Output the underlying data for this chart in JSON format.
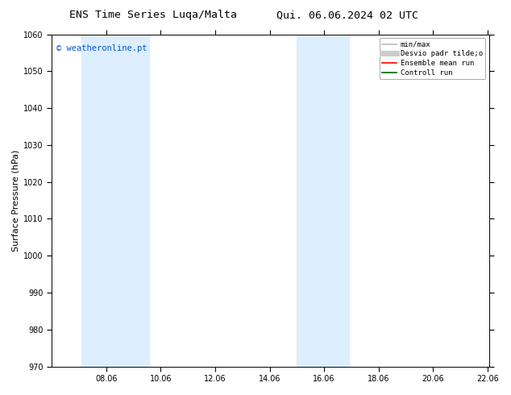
{
  "title_left": "ENS Time Series Luqa/Malta",
  "title_right": "Qui. 06.06.2024 02 UTC",
  "ylabel": "Surface Pressure (hPa)",
  "ylim": [
    970,
    1060
  ],
  "yticks": [
    970,
    980,
    990,
    1000,
    1010,
    1020,
    1030,
    1040,
    1050,
    1060
  ],
  "xlim_start": 6.0,
  "xlim_end": 22.06,
  "xtick_positions": [
    8,
    10,
    12,
    14,
    16,
    18,
    20,
    22
  ],
  "xtick_labels": [
    "08.06",
    "10.06",
    "12.06",
    "14.06",
    "16.06",
    "18.06",
    "20.06",
    "22.06"
  ],
  "watermark": "© weatheronline.pt",
  "watermark_color": "#0055cc",
  "shaded_regions": [
    {
      "xstart": 7.08,
      "xend": 9.58,
      "color": "#ddeeff"
    },
    {
      "xstart": 15.0,
      "xend": 16.92,
      "color": "#ddeeff"
    }
  ],
  "legend_entries": [
    {
      "label": "min/max",
      "color": "#bbbbbb",
      "lw": 1.2
    },
    {
      "label": "Desvio padr tilde;o",
      "color": "#cccccc",
      "lw": 5
    },
    {
      "label": "Ensemble mean run",
      "color": "#ff0000",
      "lw": 1.2
    },
    {
      "label": "Controll run",
      "color": "#006600",
      "lw": 1.2
    }
  ],
  "background_color": "#ffffff",
  "plot_bg_color": "#ffffff",
  "title_fontsize": 9.5,
  "tick_fontsize": 7,
  "ylabel_fontsize": 8,
  "watermark_fontsize": 7.5,
  "legend_fontsize": 6.5
}
